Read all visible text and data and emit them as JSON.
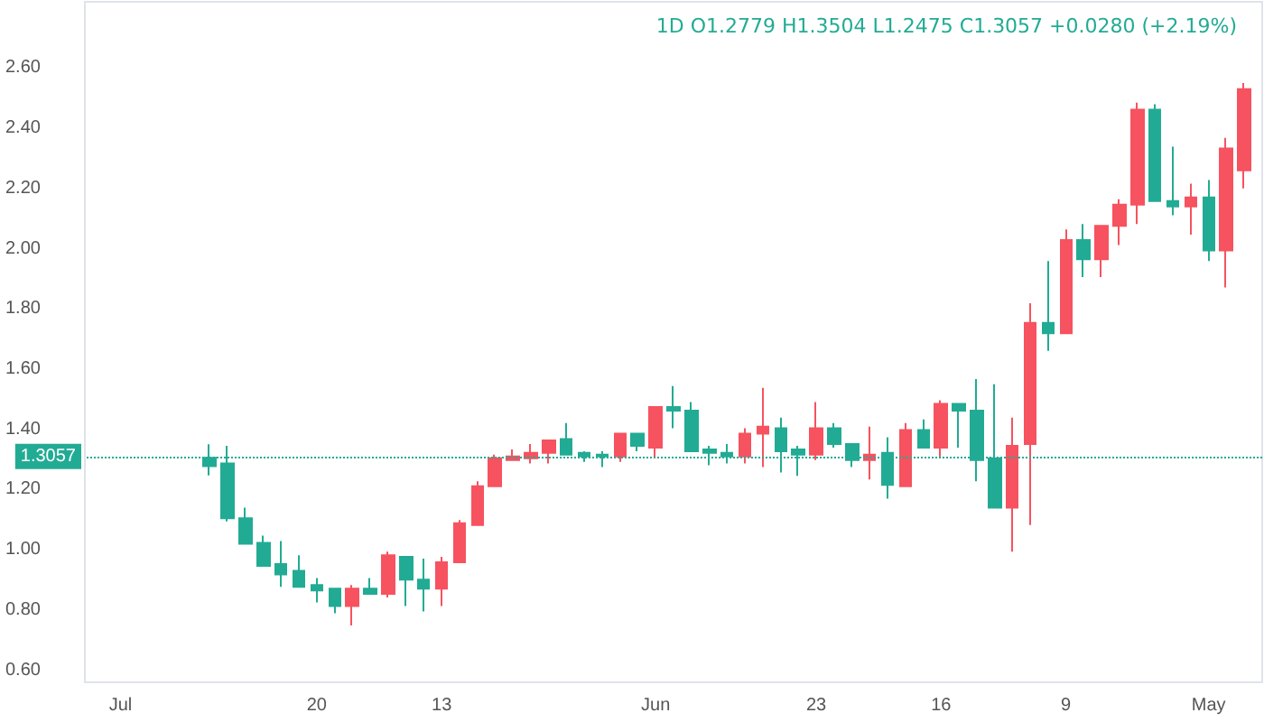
{
  "chart_data": {
    "type": "candlestick",
    "title": "1D O1.2779 H1.3504 L1.2475 C1.3057 +0.0280 (+2.19%)",
    "x": [
      "--06-26",
      "--06-25",
      "--06-24",
      "--06-23",
      "--06-22",
      "--06-21",
      "--06-20",
      "--06-19",
      "--06-18",
      "--06-17",
      "--06-16",
      "--06-15",
      "--06-14",
      "--06-13",
      "--06-12",
      "--06-11",
      "--06-10",
      "--06-09",
      "--06-08",
      "--06-07",
      "--06-06",
      "--06-05",
      "--06-04",
      "--06-03",
      "--06-02",
      "--06-01",
      "--05-31",
      "--05-30",
      "--05-29",
      "--05-28",
      "--05-27",
      "--05-26",
      "--05-25",
      "--05-24",
      "--05-23",
      "--05-22",
      "--05-21",
      "--05-20",
      "--05-19",
      "--05-18",
      "--05-17",
      "--05-16",
      "--05-15",
      "--05-14",
      "--05-13",
      "--05-12",
      "--05-11",
      "--05-10",
      "--05-09",
      "--05-08",
      "--05-07",
      "--05-06",
      "--05-05",
      "--05-04",
      "--05-03",
      "--05-02",
      "--05-01",
      "--04-30",
      "--04-29"
    ],
    "ohlc": [
      [
        1.2779,
        1.3504,
        1.2475,
        1.3057
      ],
      [
        1.105,
        1.345,
        1.094,
        1.287
      ],
      [
        1.02,
        1.14,
        1.02,
        1.105
      ],
      [
        0.947,
        1.047,
        0.947,
        1.023
      ],
      [
        0.918,
        1.029,
        0.877,
        0.953
      ],
      [
        0.877,
        0.982,
        0.877,
        0.93
      ],
      [
        0.865,
        0.906,
        0.825,
        0.883
      ],
      [
        0.813,
        0.871,
        0.789,
        0.871
      ],
      [
        0.871,
        0.883,
        0.749,
        0.813
      ],
      [
        0.854,
        0.906,
        0.854,
        0.871
      ],
      [
        0.982,
        0.994,
        0.842,
        0.854
      ],
      [
        0.901,
        0.977,
        0.813,
        0.977
      ],
      [
        0.871,
        0.971,
        0.795,
        0.901
      ],
      [
        0.959,
        0.977,
        0.813,
        0.871
      ],
      [
        1.088,
        1.099,
        0.959,
        0.959
      ],
      [
        1.211,
        1.228,
        1.082,
        1.082
      ],
      [
        1.304,
        1.316,
        1.211,
        1.211
      ],
      [
        1.31,
        1.333,
        1.298,
        1.298
      ],
      [
        1.322,
        1.351,
        1.287,
        1.304
      ],
      [
        1.363,
        1.363,
        1.287,
        1.322
      ],
      [
        1.316,
        1.421,
        1.316,
        1.368
      ],
      [
        1.31,
        1.327,
        1.292,
        1.322
      ],
      [
        1.31,
        1.327,
        1.275,
        1.316
      ],
      [
        1.386,
        1.386,
        1.292,
        1.31
      ],
      [
        1.345,
        1.386,
        1.327,
        1.386
      ],
      [
        1.474,
        1.474,
        1.304,
        1.339
      ],
      [
        1.462,
        1.544,
        1.404,
        1.474
      ],
      [
        1.327,
        1.491,
        1.327,
        1.462
      ],
      [
        1.322,
        1.345,
        1.281,
        1.333
      ],
      [
        1.31,
        1.351,
        1.287,
        1.322
      ],
      [
        1.386,
        1.404,
        1.287,
        1.31
      ],
      [
        1.409,
        1.538,
        1.275,
        1.386
      ],
      [
        1.327,
        1.439,
        1.257,
        1.404
      ],
      [
        1.316,
        1.345,
        1.246,
        1.333
      ],
      [
        1.404,
        1.491,
        1.298,
        1.316
      ],
      [
        1.351,
        1.421,
        1.339,
        1.404
      ],
      [
        1.298,
        1.351,
        1.275,
        1.351
      ],
      [
        1.316,
        1.409,
        1.234,
        1.298
      ],
      [
        1.216,
        1.374,
        1.17,
        1.322
      ],
      [
        1.398,
        1.421,
        1.211,
        1.211
      ],
      [
        1.339,
        1.433,
        1.339,
        1.398
      ],
      [
        1.485,
        1.497,
        1.304,
        1.339
      ],
      [
        1.462,
        1.485,
        1.339,
        1.485
      ],
      [
        1.298,
        1.567,
        1.228,
        1.462
      ],
      [
        1.14,
        1.55,
        1.14,
        1.304
      ],
      [
        1.345,
        1.439,
        0.994,
        1.14
      ],
      [
        1.754,
        1.819,
        1.082,
        1.351
      ],
      [
        1.719,
        1.959,
        1.661,
        1.754
      ],
      [
        2.029,
        2.064,
        1.719,
        1.719
      ],
      [
        1.965,
        2.082,
        1.906,
        2.029
      ],
      [
        2.076,
        2.076,
        1.906,
        1.965
      ],
      [
        2.146,
        2.164,
        2.012,
        2.076
      ],
      [
        2.462,
        2.485,
        2.082,
        2.146
      ],
      [
        2.158,
        2.48,
        2.158,
        2.462
      ],
      [
        2.14,
        2.339,
        2.111,
        2.158
      ],
      [
        2.17,
        2.216,
        2.047,
        2.14
      ],
      [
        1.994,
        2.228,
        1.959,
        2.17
      ],
      [
        2.333,
        2.368,
        1.871,
        1.994
      ],
      [
        2.53,
        2.55,
        2.2,
        2.26
      ]
    ],
    "colors": [
      "#22ab94",
      "#22ab94",
      "#22ab94",
      "#22ab94",
      "#22ab94",
      "#22ab94",
      "#22ab94",
      "#22ab94",
      "#f7525f",
      "#22ab94",
      "#f7525f",
      "#22ab94",
      "#22ab94",
      "#f7525f",
      "#f7525f",
      "#f7525f",
      "#f7525f",
      "#f7525f",
      "#f7525f",
      "#f7525f",
      "#22ab94",
      "#22ab94",
      "#22ab94",
      "#f7525f",
      "#22ab94",
      "#f7525f",
      "#22ab94",
      "#22ab94",
      "#22ab94",
      "#22ab94",
      "#f7525f",
      "#f7525f",
      "#22ab94",
      "#22ab94",
      "#f7525f",
      "#22ab94",
      "#22ab94",
      "#f7525f",
      "#22ab94",
      "#f7525f",
      "#22ab94",
      "#f7525f",
      "#22ab94",
      "#22ab94",
      "#22ab94",
      "#f7525f",
      "#f7525f",
      "#22ab94",
      "#f7525f",
      "#22ab94",
      "#f7525f",
      "#f7525f",
      "#f7525f",
      "#22ab94",
      "#22ab94",
      "#f7525f",
      "#22ab94",
      "#f7525f",
      "#f7525f"
    ],
    "xlim": [
      "--07-03",
      "--04-28"
    ],
    "xticks": [
      {
        "value": "--07-01",
        "label": "Jul"
      },
      {
        "value": "--06-20",
        "label": "20"
      },
      {
        "value": "--06-13",
        "label": "13"
      },
      {
        "value": "--06-01",
        "label": "Jun"
      },
      {
        "value": "--05-23",
        "label": "23"
      },
      {
        "value": "--05-16",
        "label": "16"
      },
      {
        "value": "--05-09",
        "label": "9"
      },
      {
        "value": "--05-01",
        "label": "May"
      }
    ],
    "ylim": [
      0.56,
      2.82
    ],
    "yticks": [
      {
        "value": 0.6,
        "label": "0.60"
      },
      {
        "value": 0.8,
        "label": "0.80"
      },
      {
        "value": 1.0,
        "label": "1.00"
      },
      {
        "value": 1.2,
        "label": "1.20"
      },
      {
        "value": 1.4,
        "label": "1.40"
      },
      {
        "value": 1.6,
        "label": "1.60"
      },
      {
        "value": 1.8,
        "label": "1.80"
      },
      {
        "value": 2.0,
        "label": "2.00"
      },
      {
        "value": 2.2,
        "label": "2.20"
      },
      {
        "value": 2.4,
        "label": "2.40"
      },
      {
        "value": 2.6,
        "label": "2.60"
      }
    ],
    "ref_lines": [
      {
        "axis": "y",
        "value": 1.3057,
        "label": "1.3057",
        "color": "#22ab94",
        "line_style": "dotted"
      }
    ],
    "grid": false
  }
}
